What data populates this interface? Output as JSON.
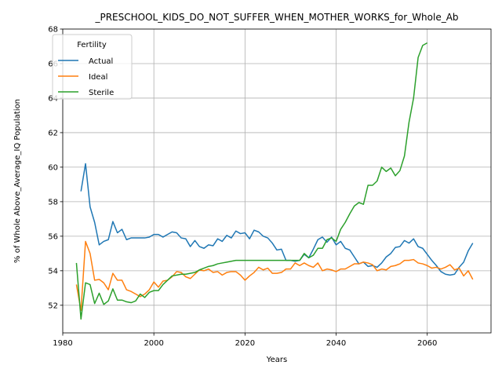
{
  "chart_data": {
    "type": "line",
    "title": "_PRESCHOOL_KIDS_DO_NOT_SUFFER_WHEN_MOTHER_WORKS_for_Whole_Ab",
    "xlabel": "Years",
    "ylabel": "% of Whole Above_Average_IQ Population",
    "xlim": [
      1980,
      2074
    ],
    "ylim": [
      50.4,
      68
    ],
    "xticks": [
      1980,
      2000,
      2020,
      2040,
      2060
    ],
    "yticks": [
      52,
      54,
      56,
      58,
      60,
      62,
      64,
      66,
      68
    ],
    "grid": true,
    "legend": {
      "title": "Fertility",
      "placement": "top-left"
    },
    "series": [
      {
        "name": "Actual",
        "color": "#1f77b4",
        "x": [
          1984,
          1985,
          1986,
          1987,
          1988,
          1989,
          1990,
          1991,
          1992,
          1993,
          1994,
          1995,
          1996,
          1997,
          1998,
          1999,
          2000,
          2001,
          2002,
          2003,
          2004,
          2005,
          2006,
          2007,
          2008,
          2009,
          2010,
          2011,
          2012,
          2013,
          2014,
          2015,
          2016,
          2017,
          2018,
          2019,
          2020,
          2021,
          2022,
          2023,
          2024,
          2025,
          2026,
          2027,
          2028,
          2029,
          2030,
          2031,
          2032,
          2033,
          2034,
          2035,
          2036,
          2037,
          2038,
          2039,
          2040,
          2041,
          2042,
          2043,
          2044,
          2045,
          2046,
          2047,
          2048,
          2049,
          2050,
          2051,
          2052,
          2053,
          2054,
          2055,
          2056,
          2057,
          2058,
          2059,
          2060,
          2061,
          2062,
          2063,
          2064,
          2065,
          2066,
          2067,
          2068,
          2069,
          2070
        ],
        "values": [
          58.6,
          60.2,
          57.7,
          56.8,
          55.5,
          55.7,
          55.8,
          56.85,
          56.2,
          56.4,
          55.8,
          55.9,
          55.9,
          55.9,
          55.9,
          55.95,
          56.1,
          56.1,
          55.95,
          56.1,
          56.25,
          56.2,
          55.9,
          55.85,
          55.4,
          55.75,
          55.4,
          55.3,
          55.5,
          55.45,
          55.85,
          55.7,
          56.05,
          55.9,
          56.3,
          56.15,
          56.2,
          55.85,
          56.35,
          56.25,
          56.0,
          55.9,
          55.6,
          55.2,
          55.25,
          54.6,
          54.6,
          54.55,
          54.6,
          54.95,
          54.75,
          55.25,
          55.8,
          55.95,
          55.65,
          55.95,
          55.5,
          55.7,
          55.3,
          55.2,
          54.8,
          54.4,
          54.5,
          54.25,
          54.3,
          54.2,
          54.45,
          54.8,
          55.0,
          55.35,
          55.4,
          55.75,
          55.6,
          55.85,
          55.4,
          55.3,
          54.95,
          54.6,
          54.3,
          53.95,
          53.8,
          53.75,
          53.8,
          54.2,
          54.5,
          55.15,
          55.6
        ]
      },
      {
        "name": "Ideal",
        "color": "#ff7f0e",
        "x": [
          1983,
          1984,
          1985,
          1986,
          1987,
          1988,
          1989,
          1990,
          1991,
          1992,
          1993,
          1994,
          1995,
          1996,
          1997,
          1998,
          1999,
          2000,
          2001,
          2002,
          2003,
          2004,
          2005,
          2006,
          2007,
          2008,
          2009,
          2010,
          2011,
          2012,
          2013,
          2014,
          2015,
          2016,
          2017,
          2018,
          2019,
          2020,
          2021,
          2022,
          2023,
          2024,
          2025,
          2026,
          2027,
          2028,
          2029,
          2030,
          2031,
          2032,
          2033,
          2034,
          2035,
          2036,
          2037,
          2038,
          2039,
          2040,
          2041,
          2042,
          2043,
          2044,
          2045,
          2046,
          2047,
          2048,
          2049,
          2050,
          2051,
          2052,
          2053,
          2054,
          2055,
          2056,
          2057,
          2058,
          2059,
          2060,
          2061,
          2062,
          2063,
          2064,
          2065,
          2066,
          2067,
          2068,
          2069,
          2070
        ],
        "values": [
          53.2,
          51.7,
          55.7,
          55.0,
          53.45,
          53.5,
          53.3,
          52.9,
          53.85,
          53.45,
          53.45,
          52.9,
          52.8,
          52.65,
          52.5,
          52.65,
          52.9,
          53.35,
          53.05,
          53.4,
          53.45,
          53.65,
          53.95,
          53.9,
          53.65,
          53.55,
          53.8,
          54.05,
          54.0,
          54.1,
          53.9,
          53.95,
          53.75,
          53.9,
          53.95,
          53.95,
          53.75,
          53.45,
          53.7,
          53.9,
          54.2,
          54.05,
          54.15,
          53.85,
          53.85,
          53.9,
          54.1,
          54.1,
          54.45,
          54.3,
          54.45,
          54.3,
          54.2,
          54.45,
          54.0,
          54.1,
          54.05,
          53.95,
          54.1,
          54.1,
          54.25,
          54.4,
          54.4,
          54.5,
          54.45,
          54.35,
          54.0,
          54.1,
          54.05,
          54.25,
          54.3,
          54.4,
          54.6,
          54.6,
          54.65,
          54.45,
          54.4,
          54.3,
          54.15,
          54.2,
          54.1,
          54.2,
          54.35,
          54.05,
          54.15,
          53.7,
          54.0,
          53.5
        ]
      },
      {
        "name": "Sterile",
        "color": "#2ca02c",
        "x": [
          1983,
          1984,
          1985,
          1986,
          1987,
          1988,
          1989,
          1990,
          1991,
          1992,
          1993,
          1994,
          1995,
          1996,
          1997,
          1998,
          1999,
          2000,
          2001,
          2002,
          2003,
          2004,
          2005,
          2006,
          2007,
          2008,
          2009,
          2010,
          2011,
          2012,
          2013,
          2014,
          2015,
          2016,
          2017,
          2018,
          2019,
          2020,
          2021,
          2022,
          2023,
          2024,
          2025,
          2026,
          2027,
          2028,
          2029,
          2030,
          2031,
          2032,
          2033,
          2034,
          2035,
          2036,
          2037,
          2038,
          2039,
          2040,
          2041,
          2042,
          2043,
          2044,
          2045,
          2046,
          2047,
          2048,
          2049,
          2050,
          2051,
          2052,
          2053,
          2054,
          2055,
          2056,
          2057,
          2058,
          2059,
          2060
        ],
        "values": [
          54.45,
          51.2,
          53.3,
          53.2,
          52.1,
          52.7,
          52.05,
          52.25,
          52.95,
          52.3,
          52.3,
          52.2,
          52.15,
          52.25,
          52.65,
          52.45,
          52.75,
          52.85,
          52.85,
          53.2,
          53.45,
          53.7,
          53.75,
          53.8,
          53.8,
          53.85,
          53.9,
          54.05,
          54.15,
          54.25,
          54.3,
          54.4,
          54.45,
          54.5,
          54.55,
          54.6,
          54.6,
          54.6,
          54.6,
          54.6,
          54.6,
          54.6,
          54.6,
          54.6,
          54.6,
          54.6,
          54.6,
          54.6,
          54.6,
          54.6,
          55.0,
          54.75,
          54.9,
          55.3,
          55.3,
          55.8,
          55.9,
          55.7,
          56.4,
          56.8,
          57.3,
          57.75,
          57.95,
          57.85,
          58.95,
          58.95,
          59.2,
          60.0,
          59.75,
          59.95,
          59.5,
          59.8,
          60.65,
          62.6,
          64.0,
          66.35,
          67.05,
          67.2
        ]
      }
    ]
  }
}
